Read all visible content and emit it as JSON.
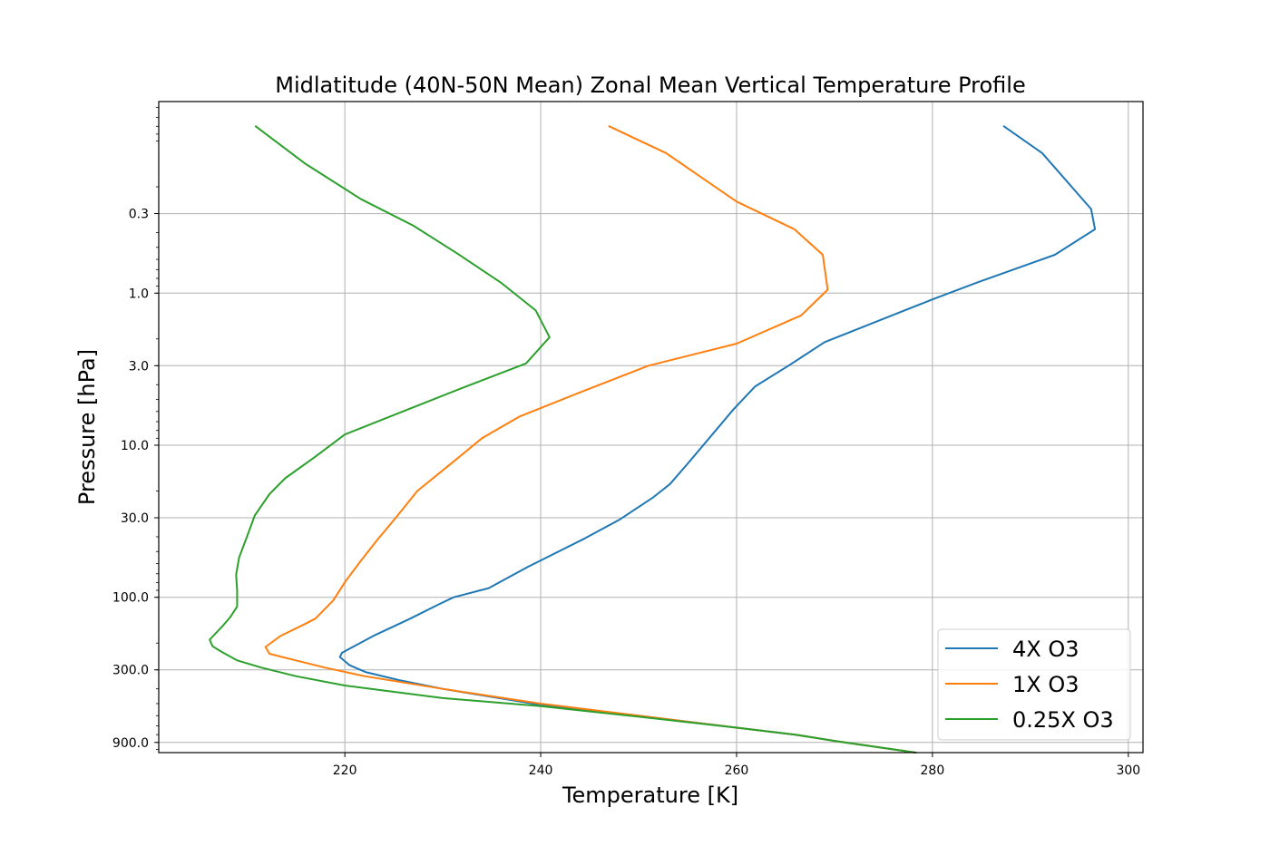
{
  "chart_data": {
    "type": "line",
    "title": "Midlatitude (40N-50N Mean) Zonal Mean Vertical Temperature Profile",
    "xlabel": "Temperature [K]",
    "ylabel": "Pressure [hPa]",
    "xlim": [
      201,
      301.5
    ],
    "ylim": [
      1050,
      0.055
    ],
    "y_scale": "log-inverted",
    "grid": true,
    "legend_position": "lower-right",
    "xticks": [
      220,
      240,
      260,
      280,
      300
    ],
    "xtick_labels": [
      "220",
      "240",
      "260",
      "280",
      "300"
    ],
    "yticks": [
      0.3,
      1.0,
      3.0,
      10.0,
      30.0,
      100.0,
      300.0,
      900.0
    ],
    "ytick_labels": [
      "0.3",
      "1.0",
      "3.0",
      "10.0",
      "30.0",
      "100.0",
      "300.0",
      "900.0"
    ],
    "series": [
      {
        "name": "4X O3",
        "color": "#1f77b4",
        "points": [
          [
            287.3,
            0.08
          ],
          [
            291.2,
            0.12
          ],
          [
            296.2,
            0.28
          ],
          [
            296.6,
            0.38
          ],
          [
            292.5,
            0.56
          ],
          [
            284.6,
            0.85
          ],
          [
            280.0,
            1.1
          ],
          [
            275.3,
            1.45
          ],
          [
            269.0,
            2.1
          ],
          [
            265.3,
            3.0
          ],
          [
            261.9,
            4.1
          ],
          [
            259.7,
            5.8
          ],
          [
            255.1,
            13.0
          ],
          [
            253.2,
            18.0
          ],
          [
            251.5,
            22.0
          ],
          [
            248.0,
            31.0
          ],
          [
            244.5,
            41.0
          ],
          [
            238.7,
            63.0
          ],
          [
            234.7,
            87.0
          ],
          [
            231.1,
            100.0
          ],
          [
            229.5,
            112.0
          ],
          [
            227.5,
            130.0
          ],
          [
            226.5,
            140.0
          ],
          [
            223.1,
            177.0
          ],
          [
            219.7,
            232.0
          ],
          [
            219.5,
            247.0
          ],
          [
            220.5,
            280.0
          ],
          [
            222.1,
            310.0
          ],
          [
            225.5,
            350.0
          ],
          [
            230.0,
            400.0
          ],
          [
            240.0,
            510.0
          ],
          [
            250.0,
            600.0
          ],
          [
            260.0,
            720.0
          ],
          [
            266.0,
            800.0
          ],
          [
            270.0,
            880.0
          ],
          [
            278.3,
            1050.0
          ]
        ]
      },
      {
        "name": "1X O3",
        "color": "#ff7f0e",
        "points": [
          [
            247.0,
            0.08
          ],
          [
            252.8,
            0.12
          ],
          [
            260.0,
            0.25
          ],
          [
            265.9,
            0.38
          ],
          [
            268.8,
            0.56
          ],
          [
            269.3,
            0.95
          ],
          [
            266.6,
            1.4
          ],
          [
            260.0,
            2.15
          ],
          [
            251.0,
            3.0
          ],
          [
            244.0,
            4.5
          ],
          [
            237.8,
            6.5
          ],
          [
            234.0,
            9.0
          ],
          [
            231.3,
            12.5
          ],
          [
            227.4,
            20.0
          ],
          [
            225.2,
            30.0
          ],
          [
            223.3,
            42.0
          ],
          [
            221.6,
            58.0
          ],
          [
            220.1,
            78.0
          ],
          [
            218.8,
            105.0
          ],
          [
            217.0,
            138.0
          ],
          [
            215.9,
            150.0
          ],
          [
            213.4,
            180.0
          ],
          [
            211.9,
            212.0
          ],
          [
            212.3,
            235.0
          ],
          [
            215.0,
            260.0
          ],
          [
            218.0,
            290.0
          ],
          [
            222.0,
            330.0
          ],
          [
            230.0,
            400.0
          ],
          [
            240.0,
            500.0
          ],
          [
            250.0,
            600.0
          ],
          [
            260.0,
            720.0
          ],
          [
            266.0,
            800.0
          ],
          [
            270.0,
            880.0
          ],
          [
            278.3,
            1050.0
          ]
        ]
      },
      {
        "name": "0.25X O3",
        "color": "#2ca02c",
        "points": [
          [
            210.9,
            0.08
          ],
          [
            215.9,
            0.14
          ],
          [
            221.6,
            0.24
          ],
          [
            227.0,
            0.36
          ],
          [
            231.5,
            0.55
          ],
          [
            235.9,
            0.85
          ],
          [
            239.5,
            1.3
          ],
          [
            240.9,
            1.95
          ],
          [
            238.5,
            2.9
          ],
          [
            232.0,
            4.2
          ],
          [
            226.5,
            5.8
          ],
          [
            220.0,
            8.5
          ],
          [
            216.9,
            12.0
          ],
          [
            213.9,
            16.5
          ],
          [
            212.3,
            21.0
          ],
          [
            210.8,
            29.0
          ],
          [
            210.0,
            40.0
          ],
          [
            209.2,
            55.0
          ],
          [
            208.9,
            71.0
          ],
          [
            209.0,
            90.0
          ],
          [
            209.0,
            115.0
          ],
          [
            208.3,
            135.0
          ],
          [
            207.5,
            155.0
          ],
          [
            206.2,
            190.0
          ],
          [
            206.5,
            210.0
          ],
          [
            207.5,
            230.0
          ],
          [
            209.0,
            260.0
          ],
          [
            211.5,
            290.0
          ],
          [
            215.0,
            330.0
          ],
          [
            220.0,
            380.0
          ],
          [
            230.0,
            460.0
          ],
          [
            240.0,
            520.0
          ],
          [
            250.0,
            610.0
          ],
          [
            260.0,
            720.0
          ],
          [
            266.0,
            800.0
          ],
          [
            270.0,
            880.0
          ],
          [
            278.3,
            1050.0
          ]
        ]
      }
    ]
  }
}
